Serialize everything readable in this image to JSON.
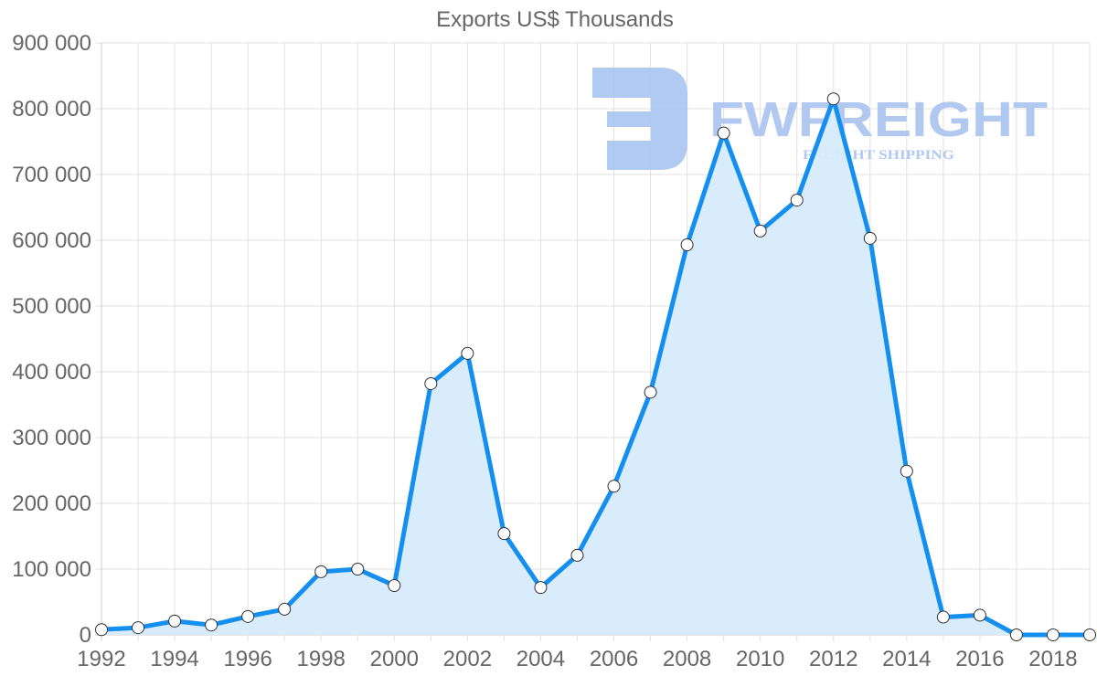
{
  "chart_data": {
    "type": "area",
    "title": "Exports US$ Thousands",
    "xlabel": "",
    "ylabel": "",
    "x": [
      1992,
      1993,
      1994,
      1995,
      1996,
      1997,
      1998,
      1999,
      2000,
      2001,
      2002,
      2003,
      2004,
      2005,
      2006,
      2007,
      2008,
      2009,
      2010,
      2011,
      2012,
      2013,
      2014,
      2015,
      2016,
      2017,
      2018,
      2019
    ],
    "series": [
      {
        "name": "Exports US$ Thousands",
        "values": [
          8000,
          11000,
          21000,
          15000,
          28000,
          39000,
          96000,
          100000,
          75000,
          382000,
          428000,
          154000,
          72000,
          121000,
          226000,
          369000,
          593000,
          763000,
          614000,
          661000,
          815000,
          603000,
          249000,
          27000,
          30000,
          0,
          0,
          0
        ]
      }
    ],
    "ylim": [
      0,
      900000
    ],
    "yticks": [
      "0",
      "100 000",
      "200 000",
      "300 000",
      "400 000",
      "500 000",
      "600 000",
      "700 000",
      "800 000",
      "900 000"
    ],
    "xticks": [
      "1992",
      "1994",
      "1996",
      "1998",
      "2000",
      "2002",
      "2004",
      "2006",
      "2008",
      "2010",
      "2012",
      "2014",
      "2016",
      "2018"
    ],
    "grid": true,
    "legend": "none",
    "colors": {
      "line": "#148ff0",
      "fill": "#d6ebfc",
      "point_fill": "#ffffff",
      "point_stroke": "#333333",
      "grid": "#e1e1e1",
      "text": "#666666"
    }
  },
  "watermark": {
    "brand": "FWFREIGHT",
    "tagline": "FREIGHT SHIPPING",
    "color": "#a9c4f0"
  }
}
